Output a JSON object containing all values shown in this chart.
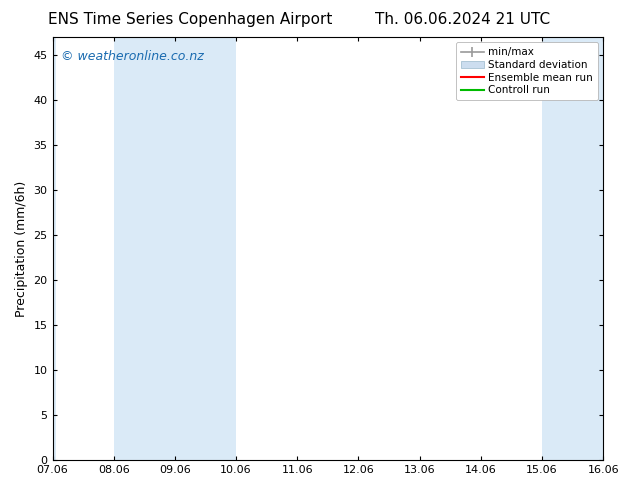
{
  "title_left": "ENS Time Series Copenhagen Airport",
  "title_right": "Th. 06.06.2024 21 UTC",
  "ylabel": "Precipitation (mm/6h)",
  "yticks": [
    0,
    5,
    10,
    15,
    20,
    25,
    30,
    35,
    40,
    45
  ],
  "ylim": [
    0,
    47
  ],
  "xtick_labels": [
    "07.06",
    "08.06",
    "09.06",
    "10.06",
    "11.06",
    "12.06",
    "13.06",
    "14.06",
    "15.06",
    "16.06"
  ],
  "x_start_date": "2024-06-07",
  "x_end_date": "2024-06-16",
  "background_color": "#ffffff",
  "plot_bg_color": "#ffffff",
  "shaded_band_color": "#daeaf7",
  "shaded_bands_dates": [
    {
      "start": "2024-06-07",
      "end": "2024-06-07 12:00:00"
    },
    {
      "start": "2024-06-08",
      "end": "2024-06-10"
    },
    {
      "start": "2024-06-15",
      "end": "2024-06-16"
    }
  ],
  "watermark_text": "© weatheronline.co.nz",
  "watermark_color": "#1a6bb0",
  "watermark_fontsize": 9,
  "legend_entries": [
    {
      "label": "min/max",
      "color": "#999999",
      "style": "errorbar"
    },
    {
      "label": "Standard deviation",
      "color": "#ccddef",
      "style": "fill"
    },
    {
      "label": "Ensemble mean run",
      "color": "#ff0000",
      "style": "line"
    },
    {
      "label": "Controll run",
      "color": "#00bb00",
      "style": "line"
    }
  ],
  "title_fontsize": 11,
  "axis_label_fontsize": 9,
  "tick_fontsize": 8
}
